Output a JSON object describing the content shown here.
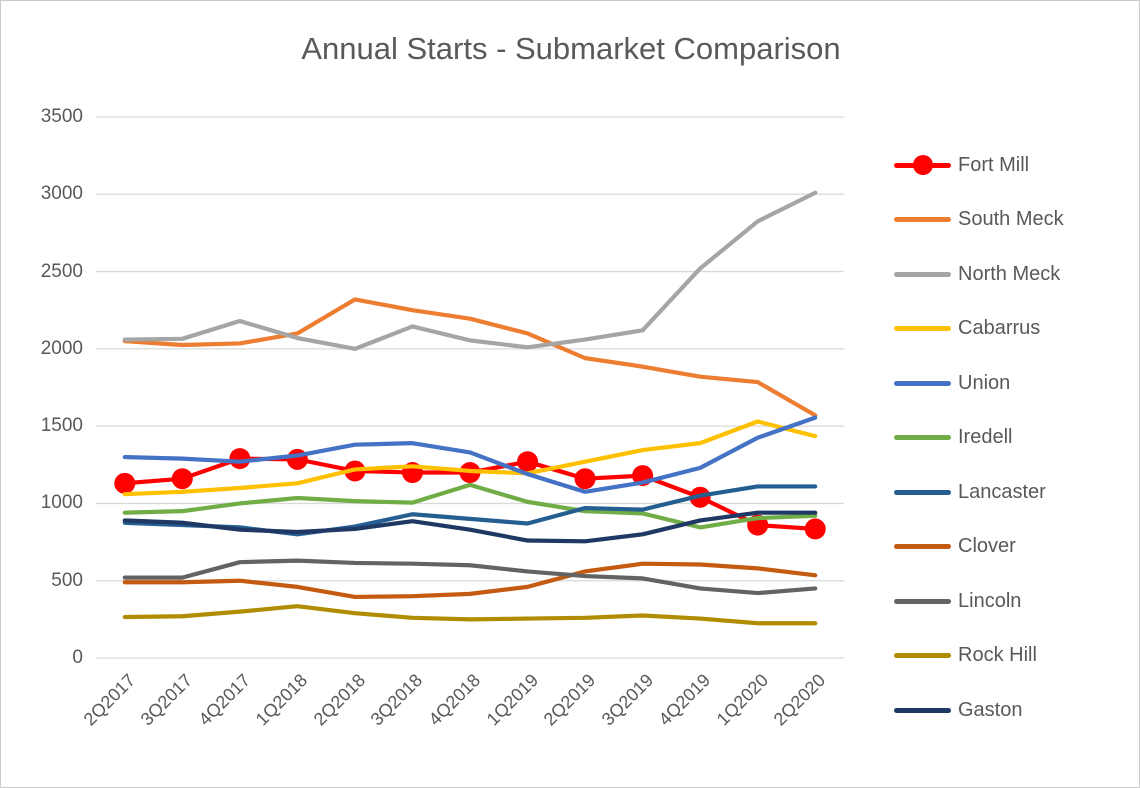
{
  "chart_data": {
    "type": "line",
    "title": "Annual Starts - Submarket Comparison",
    "xlabel": "",
    "ylabel": "",
    "ylim": [
      0,
      3500
    ],
    "ytick_step": 500,
    "grid": true,
    "legend_position": "right",
    "gridline_color": "#d9d9d9",
    "text_color": "#595959",
    "categories": [
      "2Q2017",
      "3Q2017",
      "4Q2017",
      "1Q2018",
      "2Q2018",
      "3Q2018",
      "4Q2018",
      "1Q2019",
      "2Q2019",
      "3Q2019",
      "4Q2019",
      "1Q2020",
      "2Q2020"
    ],
    "series": [
      {
        "name": "Fort Mill",
        "color": "#FF0000",
        "marker": true,
        "values": [
          1130,
          1160,
          1290,
          1285,
          1210,
          1200,
          1200,
          1270,
          1160,
          1180,
          1040,
          860,
          835
        ]
      },
      {
        "name": "South Meck",
        "color": "#ED7D31",
        "marker": false,
        "values": [
          2050,
          2025,
          2035,
          2100,
          2320,
          2250,
          2195,
          2100,
          1940,
          1885,
          1820,
          1785,
          1570
        ]
      },
      {
        "name": "North Meck",
        "color": "#A5A5A5",
        "marker": false,
        "values": [
          2060,
          2065,
          2180,
          2070,
          2000,
          2145,
          2055,
          2010,
          2060,
          2120,
          2520,
          2825,
          3010
        ]
      },
      {
        "name": "Cabarrus",
        "color": "#FFC000",
        "marker": false,
        "values": [
          1060,
          1075,
          1100,
          1130,
          1220,
          1240,
          1210,
          1195,
          1270,
          1345,
          1390,
          1530,
          1435
        ]
      },
      {
        "name": "Union",
        "color": "#4472C4",
        "marker": false,
        "values": [
          1300,
          1290,
          1270,
          1310,
          1380,
          1390,
          1330,
          1190,
          1075,
          1135,
          1230,
          1425,
          1555
        ]
      },
      {
        "name": "Iredell",
        "color": "#70AD47",
        "marker": false,
        "values": [
          940,
          950,
          1000,
          1035,
          1015,
          1005,
          1120,
          1010,
          950,
          935,
          845,
          905,
          920
        ]
      },
      {
        "name": "Lancaster",
        "color": "#255E91",
        "marker": false,
        "values": [
          875,
          860,
          845,
          800,
          850,
          930,
          900,
          870,
          970,
          960,
          1050,
          1110,
          1110
        ]
      },
      {
        "name": "Clover",
        "color": "#C55A11",
        "marker": false,
        "values": [
          490,
          490,
          500,
          460,
          395,
          400,
          415,
          460,
          560,
          610,
          605,
          580,
          535
        ]
      },
      {
        "name": "Lincoln",
        "color": "#636363",
        "marker": false,
        "values": [
          520,
          520,
          620,
          630,
          615,
          610,
          600,
          560,
          530,
          515,
          450,
          420,
          450
        ]
      },
      {
        "name": "Rock Hill",
        "color": "#B08C00",
        "marker": false,
        "values": [
          265,
          270,
          300,
          335,
          290,
          260,
          250,
          255,
          260,
          275,
          255,
          225,
          225
        ]
      },
      {
        "name": "Gaston",
        "color": "#1F3864",
        "marker": false,
        "values": [
          890,
          875,
          830,
          815,
          835,
          885,
          830,
          760,
          755,
          800,
          890,
          940,
          940
        ]
      }
    ]
  }
}
